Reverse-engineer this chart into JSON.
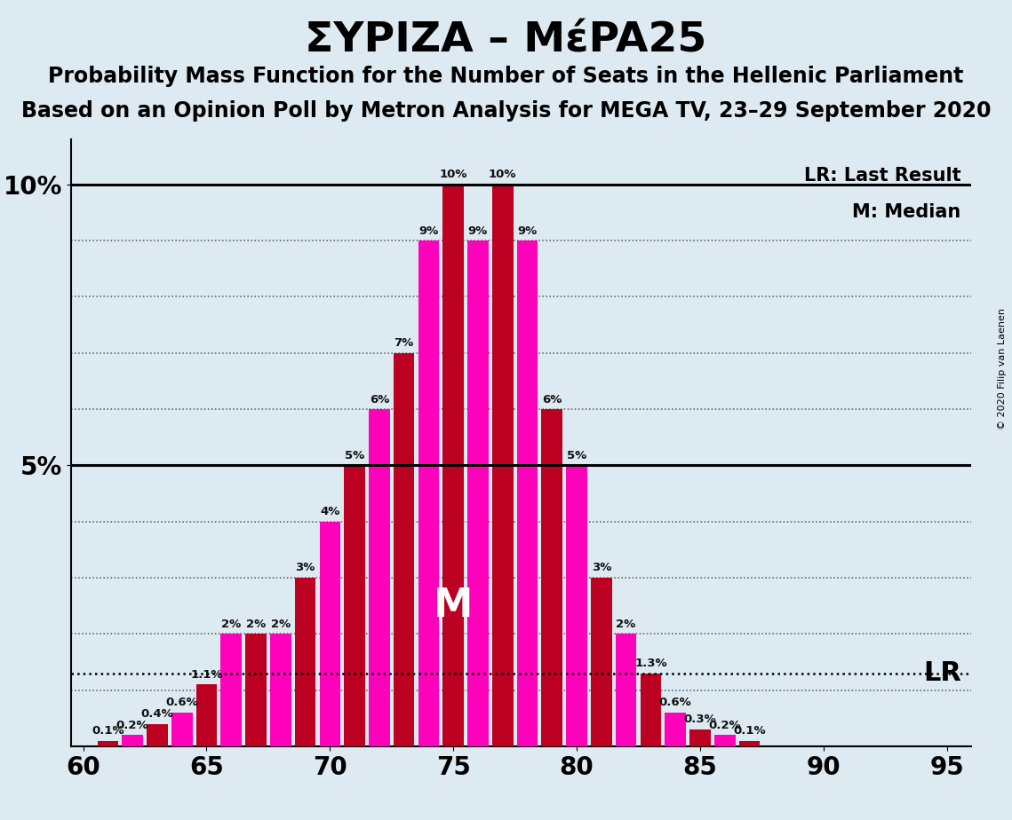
{
  "title": "ΣΥΡΙΖΑ – ΜέPA25",
  "subtitle1": "Probability Mass Function for the Number of Seats in the Hellenic Parliament",
  "subtitle2": "Based on an Opinion Poll by Metron Analysis for MEGA TV, 23–29 September 2020",
  "copyright": "© 2020 Filip van Laenen",
  "background_color": "#ddeaf2",
  "seats": [
    60,
    61,
    62,
    63,
    64,
    65,
    66,
    67,
    68,
    69,
    70,
    71,
    72,
    73,
    74,
    75,
    76,
    77,
    78,
    79,
    80,
    81,
    82,
    83,
    84,
    85,
    86,
    87,
    88,
    89,
    90,
    91,
    92,
    93,
    94,
    95
  ],
  "values": [
    0.0,
    0.1,
    0.2,
    0.4,
    0.6,
    1.1,
    2.0,
    2.0,
    2.0,
    3.0,
    4.0,
    5.0,
    6.0,
    7.0,
    9.0,
    10.0,
    9.0,
    10.0,
    9.0,
    6.0,
    5.0,
    3.0,
    2.0,
    1.3,
    0.6,
    0.3,
    0.2,
    0.1,
    0.0,
    0.0,
    0.0,
    0.0,
    0.0,
    0.0,
    0.0,
    0.0
  ],
  "bar_colors": [
    "#ff00bb",
    "#bb0022",
    "#ff00bb",
    "#bb0022",
    "#ff00bb",
    "#bb0022",
    "#ff00bb",
    "#bb0022",
    "#ff00bb",
    "#bb0022",
    "#ff00bb",
    "#bb0022",
    "#ff00bb",
    "#bb0022",
    "#ff00bb",
    "#bb0022",
    "#ff00bb",
    "#bb0022",
    "#ff00bb",
    "#bb0022",
    "#ff00bb",
    "#bb0022",
    "#ff00bb",
    "#bb0022",
    "#ff00bb",
    "#bb0022",
    "#ff00bb",
    "#bb0022",
    "#ff00bb",
    "#bb0022",
    "#ff00bb",
    "#bb0022",
    "#ff00bb",
    "#bb0022",
    "#ff00bb",
    "#bb0022"
  ],
  "median_seat": 75,
  "lr_seat": 83,
  "median_y": 5.0,
  "lr_y": 1.3,
  "ylim": [
    0,
    10.8
  ],
  "xlim": [
    59.5,
    96
  ],
  "bar_width": 0.85,
  "lr_label": "LR: Last Result",
  "median_label": "M: Median",
  "title_fontsize": 34,
  "subtitle_fontsize": 17,
  "tick_fontsize": 20,
  "label_fontsize": 9.5,
  "legend_fontsize": 15,
  "M_fontsize": 32
}
